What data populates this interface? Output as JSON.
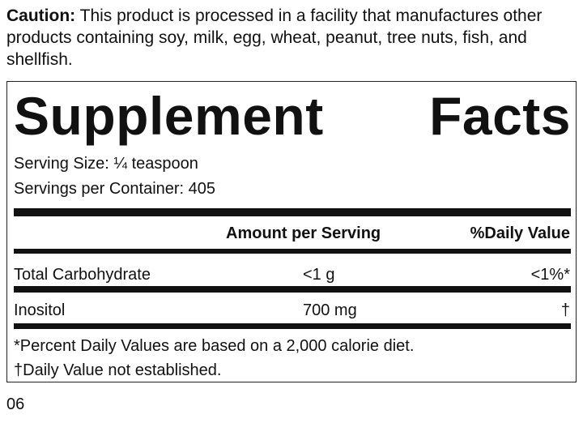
{
  "caution": {
    "label": "Caution:",
    "text": "This product is processed in a facility that manufactures other products containing soy, milk, egg, wheat, peanut, tree nuts, fish, and shellfish."
  },
  "panel": {
    "title": "Supplement Facts",
    "serving_size": "Serving Size: ¼ teaspoon",
    "servings_per_container": "Servings per Container: 405",
    "table": {
      "header": [
        "Amount per Serving",
        "%Daily Value"
      ],
      "rows": [
        [
          "Total Carbohydrate",
          "<1 g",
          "<1%*"
        ],
        [
          "Inositol",
          "700 mg",
          "†"
        ]
      ]
    },
    "footnotes": [
      "*Percent Daily Values are based on a 2,000 calorie diet.",
      "†Daily Value not established."
    ]
  },
  "code": "06"
}
